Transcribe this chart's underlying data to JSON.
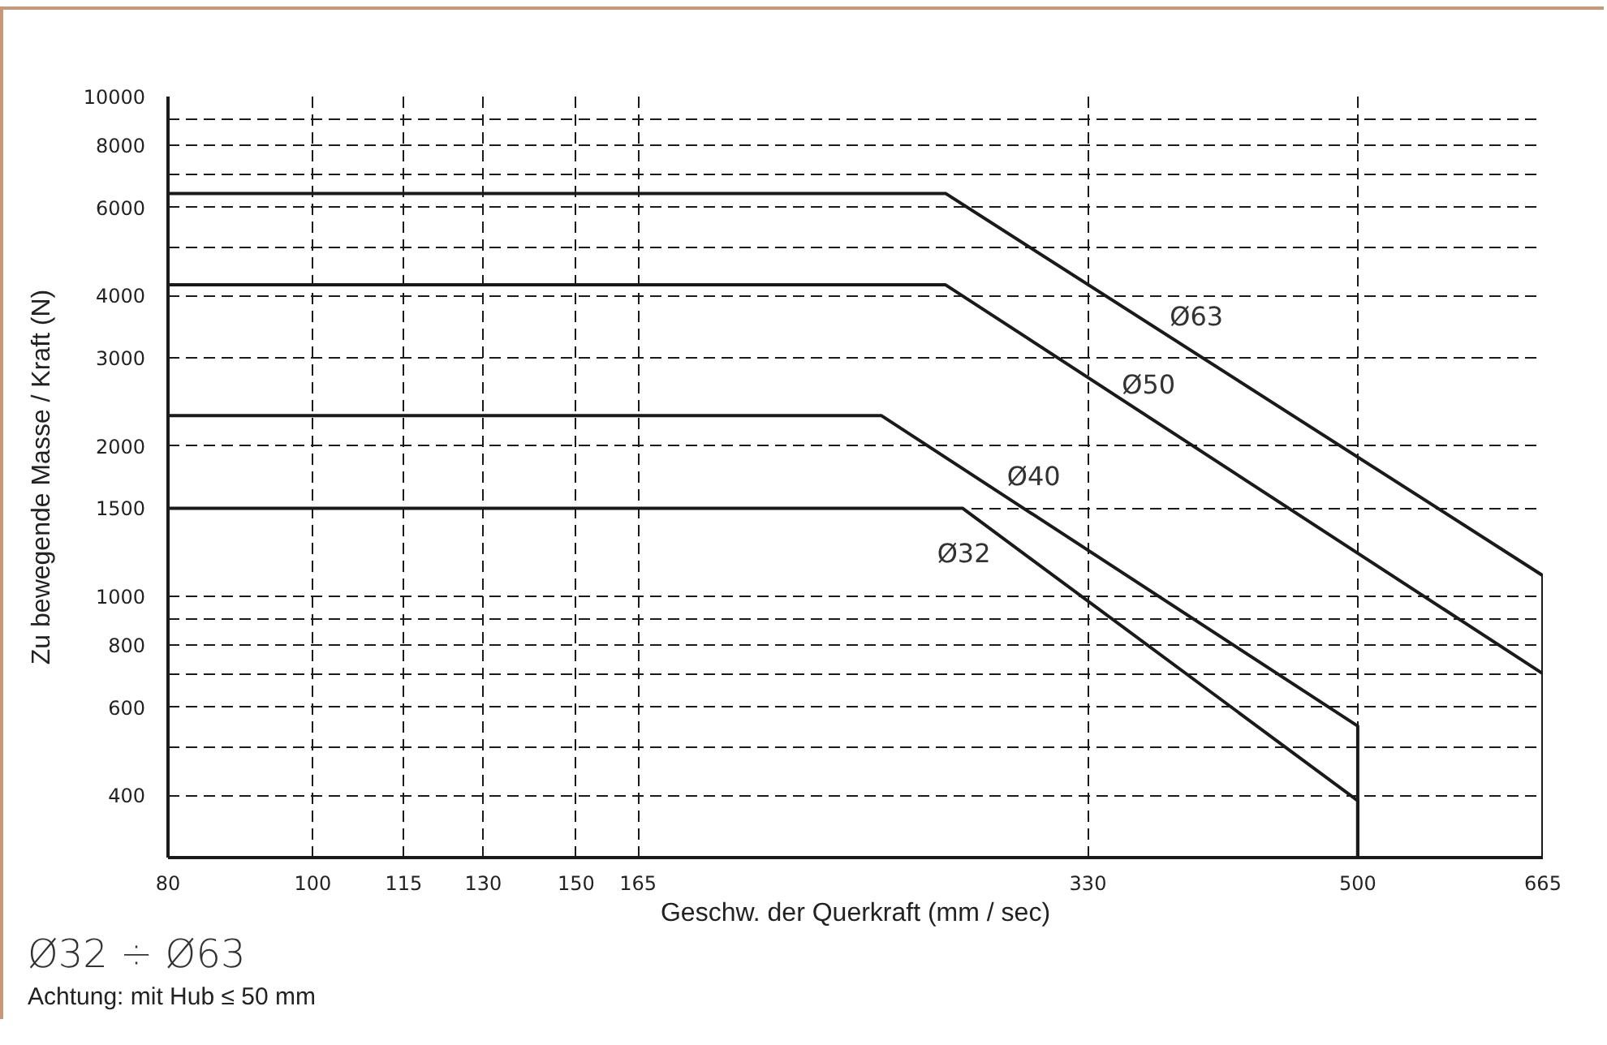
{
  "chart_data": {
    "type": "line",
    "xlabel": "Geschw. der Querkraft (mm / sec)",
    "ylabel": "Zu bewegende Masse / Kraft (N)",
    "log": "xy",
    "xlim": [
      80,
      665
    ],
    "ylim": [
      300,
      10000
    ],
    "xticks": [
      80,
      100,
      115,
      130,
      150,
      165,
      330,
      500,
      665
    ],
    "yticks": [
      400,
      {
        "value": 500,
        "label": null
      },
      600,
      {
        "value": 700,
        "label": null
      },
      800,
      {
        "value": 900,
        "label": null
      },
      1000,
      1500,
      2000,
      3000,
      4000,
      {
        "value": 5000,
        "label": null
      },
      6000,
      {
        "value": 7000,
        "label": null
      },
      8000,
      {
        "value": 9000,
        "label": null
      },
      10000
    ],
    "grid": true,
    "legend": false,
    "line_style": "solid",
    "series": [
      {
        "name": "Ø32",
        "color": "#1a1a1a",
        "x": [
          80,
          272,
          500,
          500
        ],
        "values": [
          1500,
          1500,
          390,
          300
        ]
      },
      {
        "name": "Ø40",
        "color": "#1a1a1a",
        "x": [
          80,
          240,
          500,
          500
        ],
        "values": [
          2300,
          2300,
          550,
          300
        ]
      },
      {
        "name": "Ø50",
        "color": "#1a1a1a",
        "x": [
          80,
          265,
          665,
          665
        ],
        "values": [
          4200,
          4200,
          700,
          300
        ]
      },
      {
        "name": "Ø63",
        "color": "#1a1a1a",
        "x": [
          80,
          265,
          665,
          665
        ],
        "values": [
          6400,
          6400,
          1100,
          300
        ]
      }
    ],
    "annotations": [
      "Ø32 ÷ Ø63",
      "Achtung: mit Hub ≤ 50 mm"
    ]
  }
}
